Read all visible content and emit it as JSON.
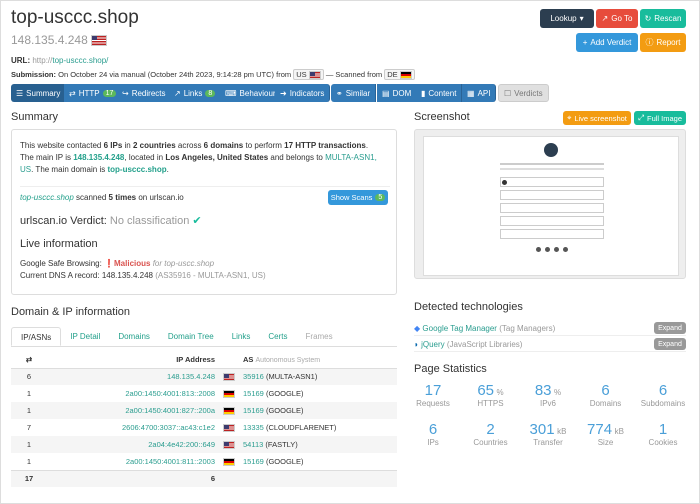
{
  "header": {
    "title": "top-usccc.shop",
    "ip": "148.135.4.248",
    "url_label": "URL:",
    "url_prefix": "http://",
    "url_host": "top-usccc.shop/",
    "submission": "On October 24 via manual (October 24th 2023, 9:14:28 pm UTC) from",
    "from_cc": "US",
    "scanned_from": "— Scanned from",
    "scanned_cc": "DE"
  },
  "buttons": {
    "lookup": "Lookup",
    "goto": "Go To",
    "rescan": "Rescan",
    "verdict": "Add Verdict",
    "report": "Report"
  },
  "nav": [
    "Summary",
    "HTTP",
    "Redirects",
    "Links",
    "Behaviour",
    "Indicators",
    "Similar",
    "DOM",
    "Content",
    "API",
    "Verdicts"
  ],
  "nav_badges": {
    "http": "17",
    "links": "8"
  },
  "summary": {
    "heading": "Summary",
    "line1a": "This website contacted ",
    "ips": "6 IPs",
    "in": " in ",
    "countries": "2 countries",
    "across": " across ",
    "domains": "6 domains",
    "perform": " to perform ",
    "tx": "17 HTTP transactions",
    "main_ip_pre": "The main IP is ",
    "main_ip": "148.135.4.248",
    "located": ", located in ",
    "location": "Los Angeles, United States",
    "belongs": " and belongs to ",
    "asn": "MULTA-ASN1, US",
    "main_domain_pre": ". The main domain is ",
    "main_domain": "top-usccc.shop",
    "scanned_host": "top-usccc.shop",
    "scanned_text": " scanned ",
    "times": "5 times",
    "on": " on urlscan.io",
    "show_scans": "Show Scans",
    "show_scans_count": "5",
    "verdict_brand": "urlscan.io",
    "verdict_label": " Verdict: ",
    "verdict_value": "No classification",
    "live_heading": "Live information",
    "gsb_label": "Google Safe Browsing: ",
    "gsb_value": "Malicious",
    "gsb_for": " for top-uscc.shop",
    "dns_label": "Current DNS A record: ",
    "dns_ip": "148.135.4.248",
    "dns_asn": "(AS35916 - MULTA-ASN1, US)"
  },
  "screenshot": {
    "heading": "Screenshot",
    "live": "Live screenshot",
    "full": "Full Image"
  },
  "domain_ip": {
    "heading": "Domain & IP information",
    "tabs": [
      "IP/ASNs",
      "IP Detail",
      "Domains",
      "Domain Tree",
      "Links",
      "Certs",
      "Frames"
    ],
    "col_ip": "IP Address",
    "col_as": "AS",
    "col_as_sub": "Autonomous System",
    "rows": [
      {
        "n": "6",
        "ip": "148.135.4.248",
        "cc": "us",
        "asn": "35916",
        "org": "(MULTA-ASN1)"
      },
      {
        "n": "1",
        "ip": "2a00:1450:4001:813::2008",
        "cc": "de",
        "asn": "15169",
        "org": "(GOOGLE)"
      },
      {
        "n": "1",
        "ip": "2a00:1450:4001:827::200a",
        "cc": "de",
        "asn": "15169",
        "org": "(GOOGLE)"
      },
      {
        "n": "7",
        "ip": "2606:4700:3037::ac43:c1e2",
        "cc": "us",
        "asn": "13335",
        "org": "(CLOUDFLARENET)"
      },
      {
        "n": "1",
        "ip": "2a04:4e42:200::649",
        "cc": "us",
        "asn": "54113",
        "org": "(FASTLY)"
      },
      {
        "n": "1",
        "ip": "2a00:1450:4001:811::2003",
        "cc": "de",
        "asn": "15169",
        "org": "(GOOGLE)"
      }
    ],
    "total_n": "17",
    "total_ips": "6"
  },
  "tech": {
    "heading": "Detected technologies",
    "items": [
      {
        "name": "Google Tag Manager",
        "cat": "(Tag Managers)"
      },
      {
        "name": "jQuery",
        "cat": "(JavaScript Libraries)"
      }
    ],
    "expand": "Expand"
  },
  "stats": {
    "heading": "Page Statistics",
    "items": [
      {
        "v": "17",
        "u": "",
        "l": "Requests"
      },
      {
        "v": "65",
        "u": "%",
        "l": "HTTPS"
      },
      {
        "v": "83",
        "u": "%",
        "l": "IPv6"
      },
      {
        "v": "6",
        "u": "",
        "l": "Domains"
      },
      {
        "v": "6",
        "u": "",
        "l": "Subdomains"
      },
      {
        "v": "6",
        "u": "",
        "l": "IPs"
      },
      {
        "v": "2",
        "u": "",
        "l": "Countries"
      },
      {
        "v": "301",
        "u": "kB",
        "l": "Transfer"
      },
      {
        "v": "774",
        "u": "kB",
        "l": "Size"
      },
      {
        "v": "1",
        "u": "",
        "l": "Cookies"
      }
    ]
  },
  "colors": {
    "teal": "#23a08b",
    "blue": "#337ab7",
    "red": "#d9534f",
    "green": "#5cb85c",
    "orange": "#f0ad4e",
    "stat": "#4a9fd8"
  }
}
